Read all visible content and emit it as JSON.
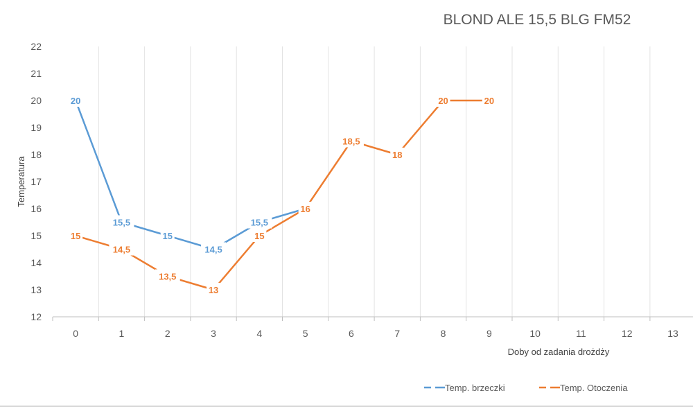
{
  "chart_data": {
    "type": "line",
    "title": "BLOND ALE 15,5 BLG FM52",
    "xlabel": "Doby od zadania drożdży",
    "ylabel": "Temperatura",
    "categories": [
      "0",
      "1",
      "2",
      "3",
      "4",
      "5",
      "6",
      "7",
      "8",
      "9",
      "10",
      "11",
      "12",
      "13"
    ],
    "ylim": [
      12,
      22
    ],
    "yticks": [
      "12",
      "13",
      "14",
      "15",
      "16",
      "17",
      "18",
      "19",
      "20",
      "21",
      "22"
    ],
    "grid": "vertical",
    "legend_position": "bottom-right",
    "series": [
      {
        "name": "Temp. brzeczki",
        "color": "#5B9BD5",
        "values": [
          20,
          15.5,
          15,
          14.5,
          15.5,
          16,
          null,
          null,
          null,
          null,
          null,
          null,
          null,
          null
        ],
        "labels": [
          "20",
          "15,5",
          "15",
          "14,5",
          "15,5",
          "",
          "",
          "",
          "",
          "",
          "",
          "",
          "",
          ""
        ]
      },
      {
        "name": "Temp. Otoczenia",
        "color": "#ED7D31",
        "values": [
          15,
          14.5,
          13.5,
          13,
          15,
          16,
          18.5,
          18,
          20,
          20,
          null,
          null,
          null,
          null
        ],
        "labels": [
          "15",
          "14,5",
          "13,5",
          "13",
          "15",
          "16",
          "18,5",
          "18",
          "20",
          "20",
          "",
          "",
          "",
          ""
        ]
      }
    ]
  }
}
